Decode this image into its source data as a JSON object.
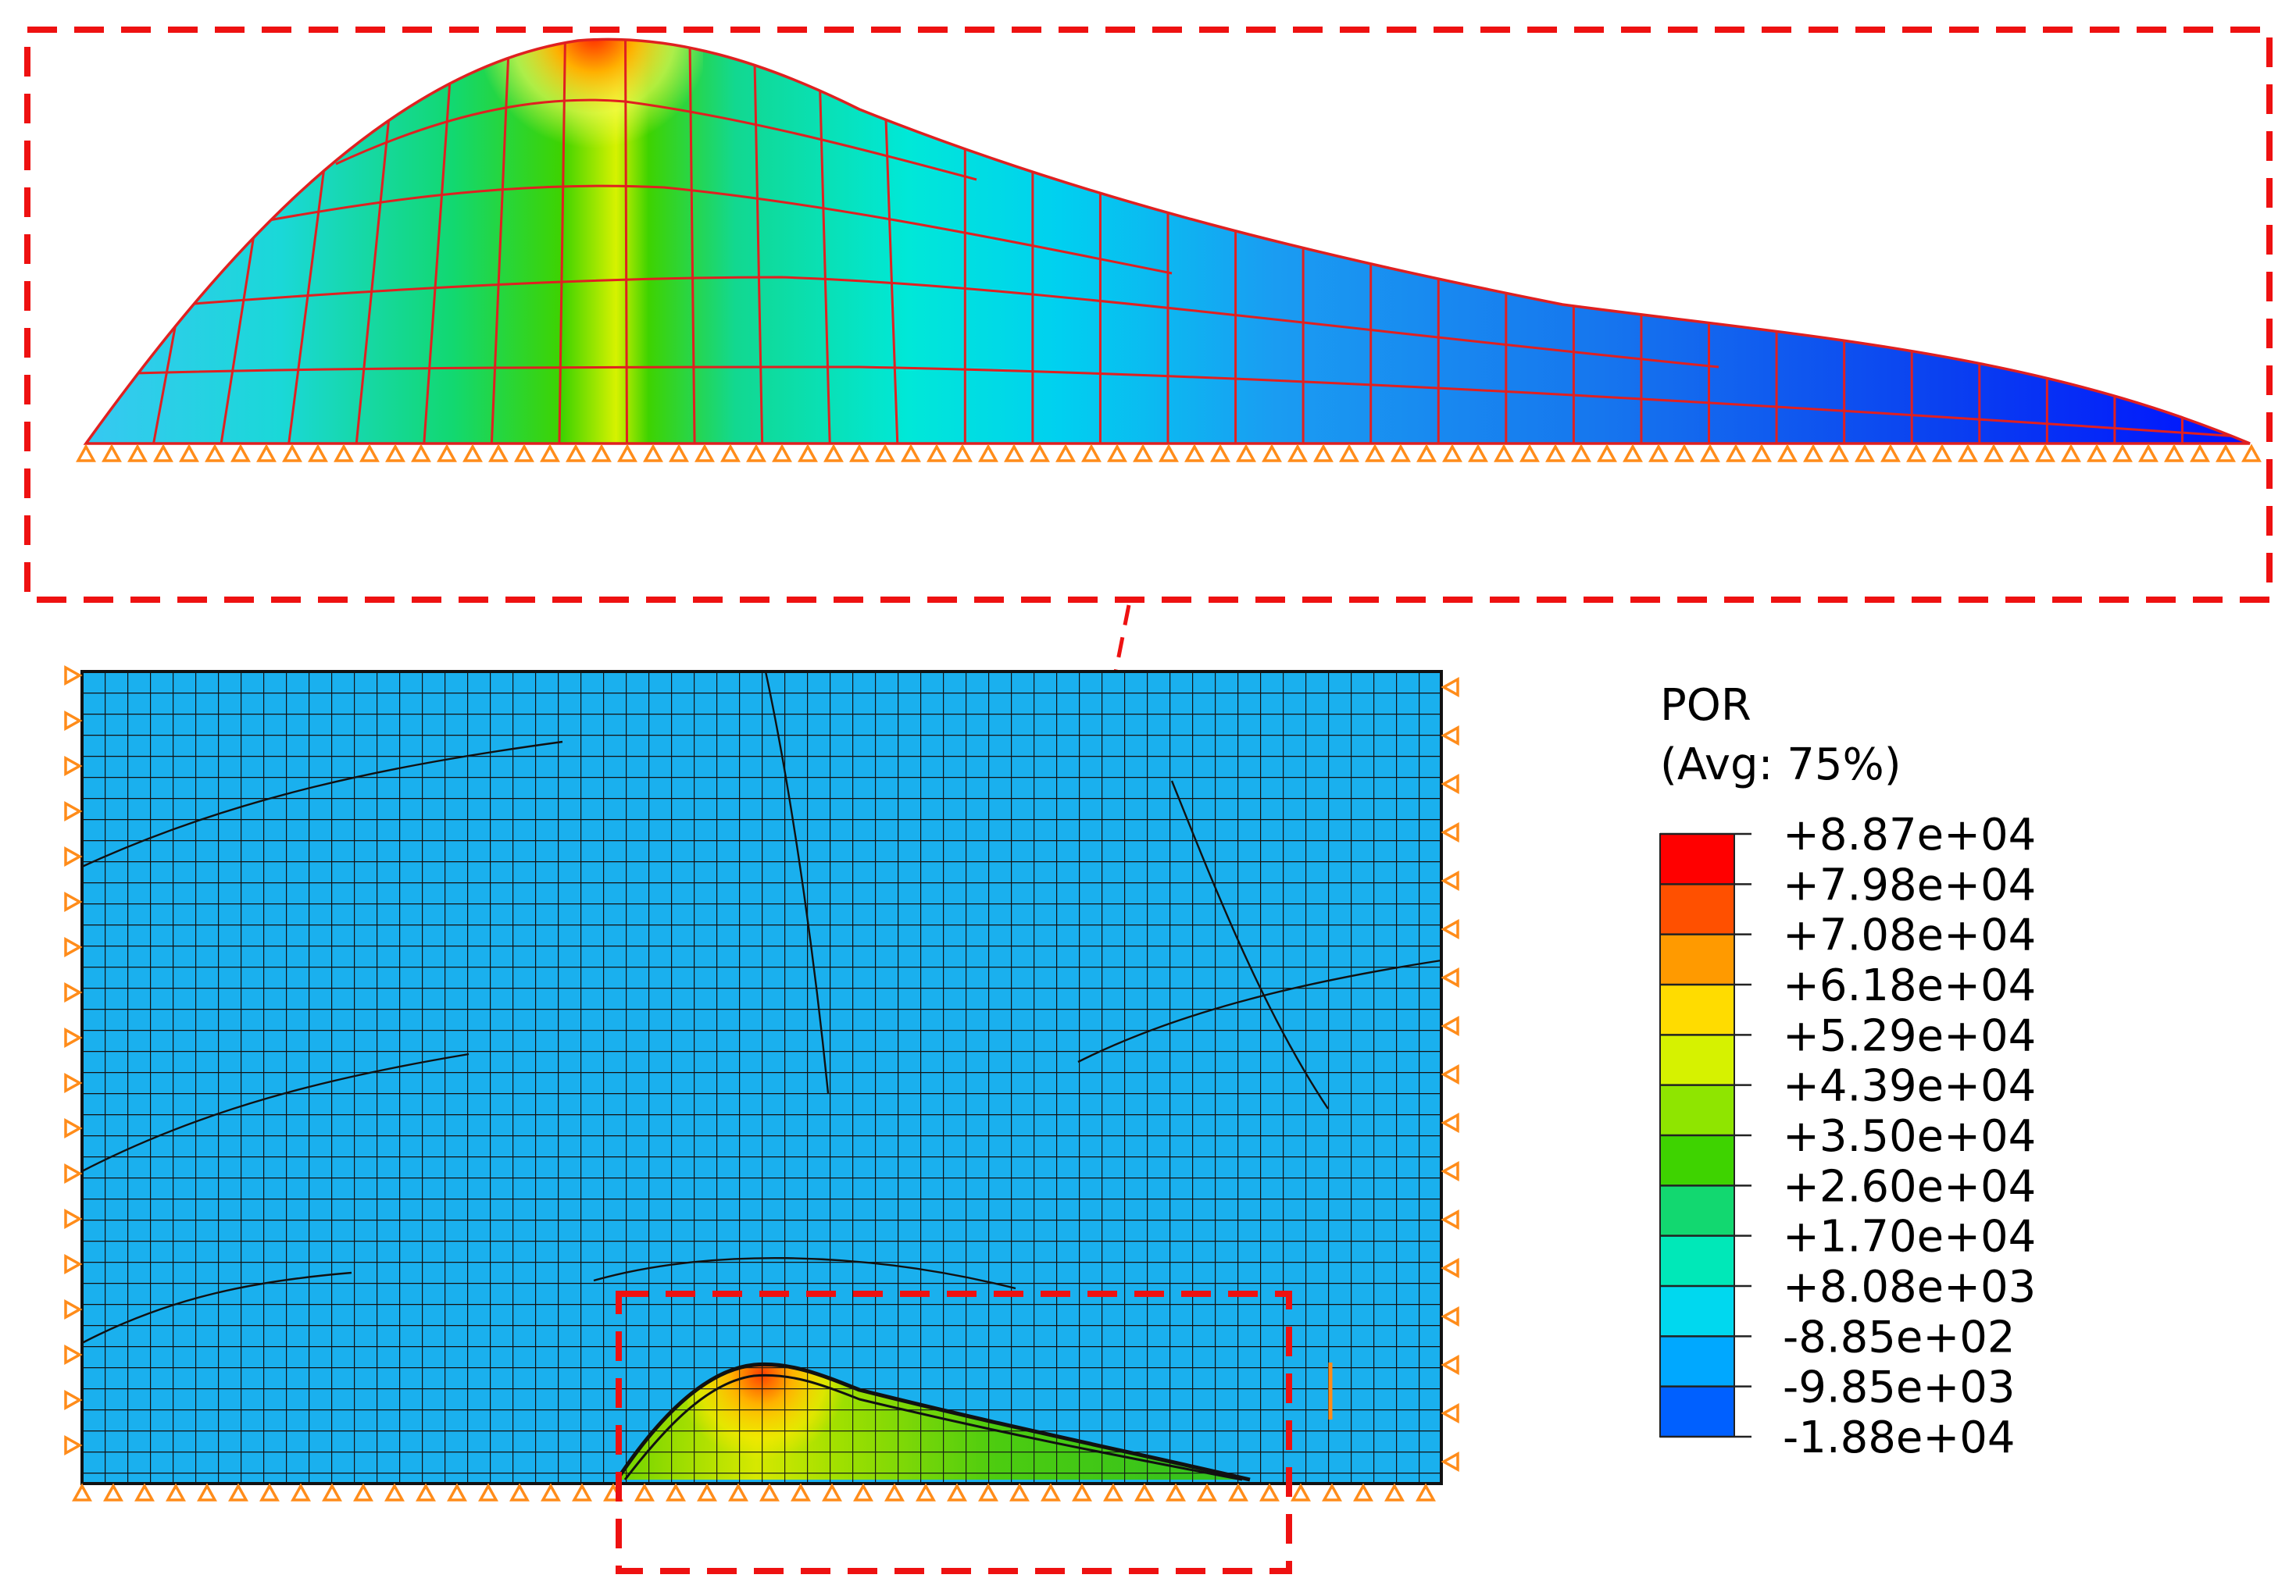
{
  "legend": {
    "title": "POR",
    "subtitle": "(Avg: 75%)",
    "labels": [
      "+8.87e+04",
      "+7.98e+04",
      "+7.08e+04",
      "+6.18e+04",
      "+5.29e+04",
      "+4.39e+04",
      "+3.50e+04",
      "+2.60e+04",
      "+1.70e+04",
      "+8.08e+03",
      "-8.85e+02",
      "-9.85e+03",
      "-1.88e+04"
    ],
    "colors": [
      "#ff0000",
      "#ff5000",
      "#ff9a00",
      "#ffdc00",
      "#d6f200",
      "#8fe500",
      "#3ed300",
      "#12d870",
      "#00e8b8",
      "#00d8ef",
      "#00a8ff",
      "#0060ff",
      "#0018ff"
    ]
  },
  "colors": {
    "domain_fill": "#1ab0ee",
    "mesh_black": "#111111",
    "mesh_red": "#e02020",
    "callout_red": "#ee1111",
    "support_orange": "#ff8c1a"
  }
}
